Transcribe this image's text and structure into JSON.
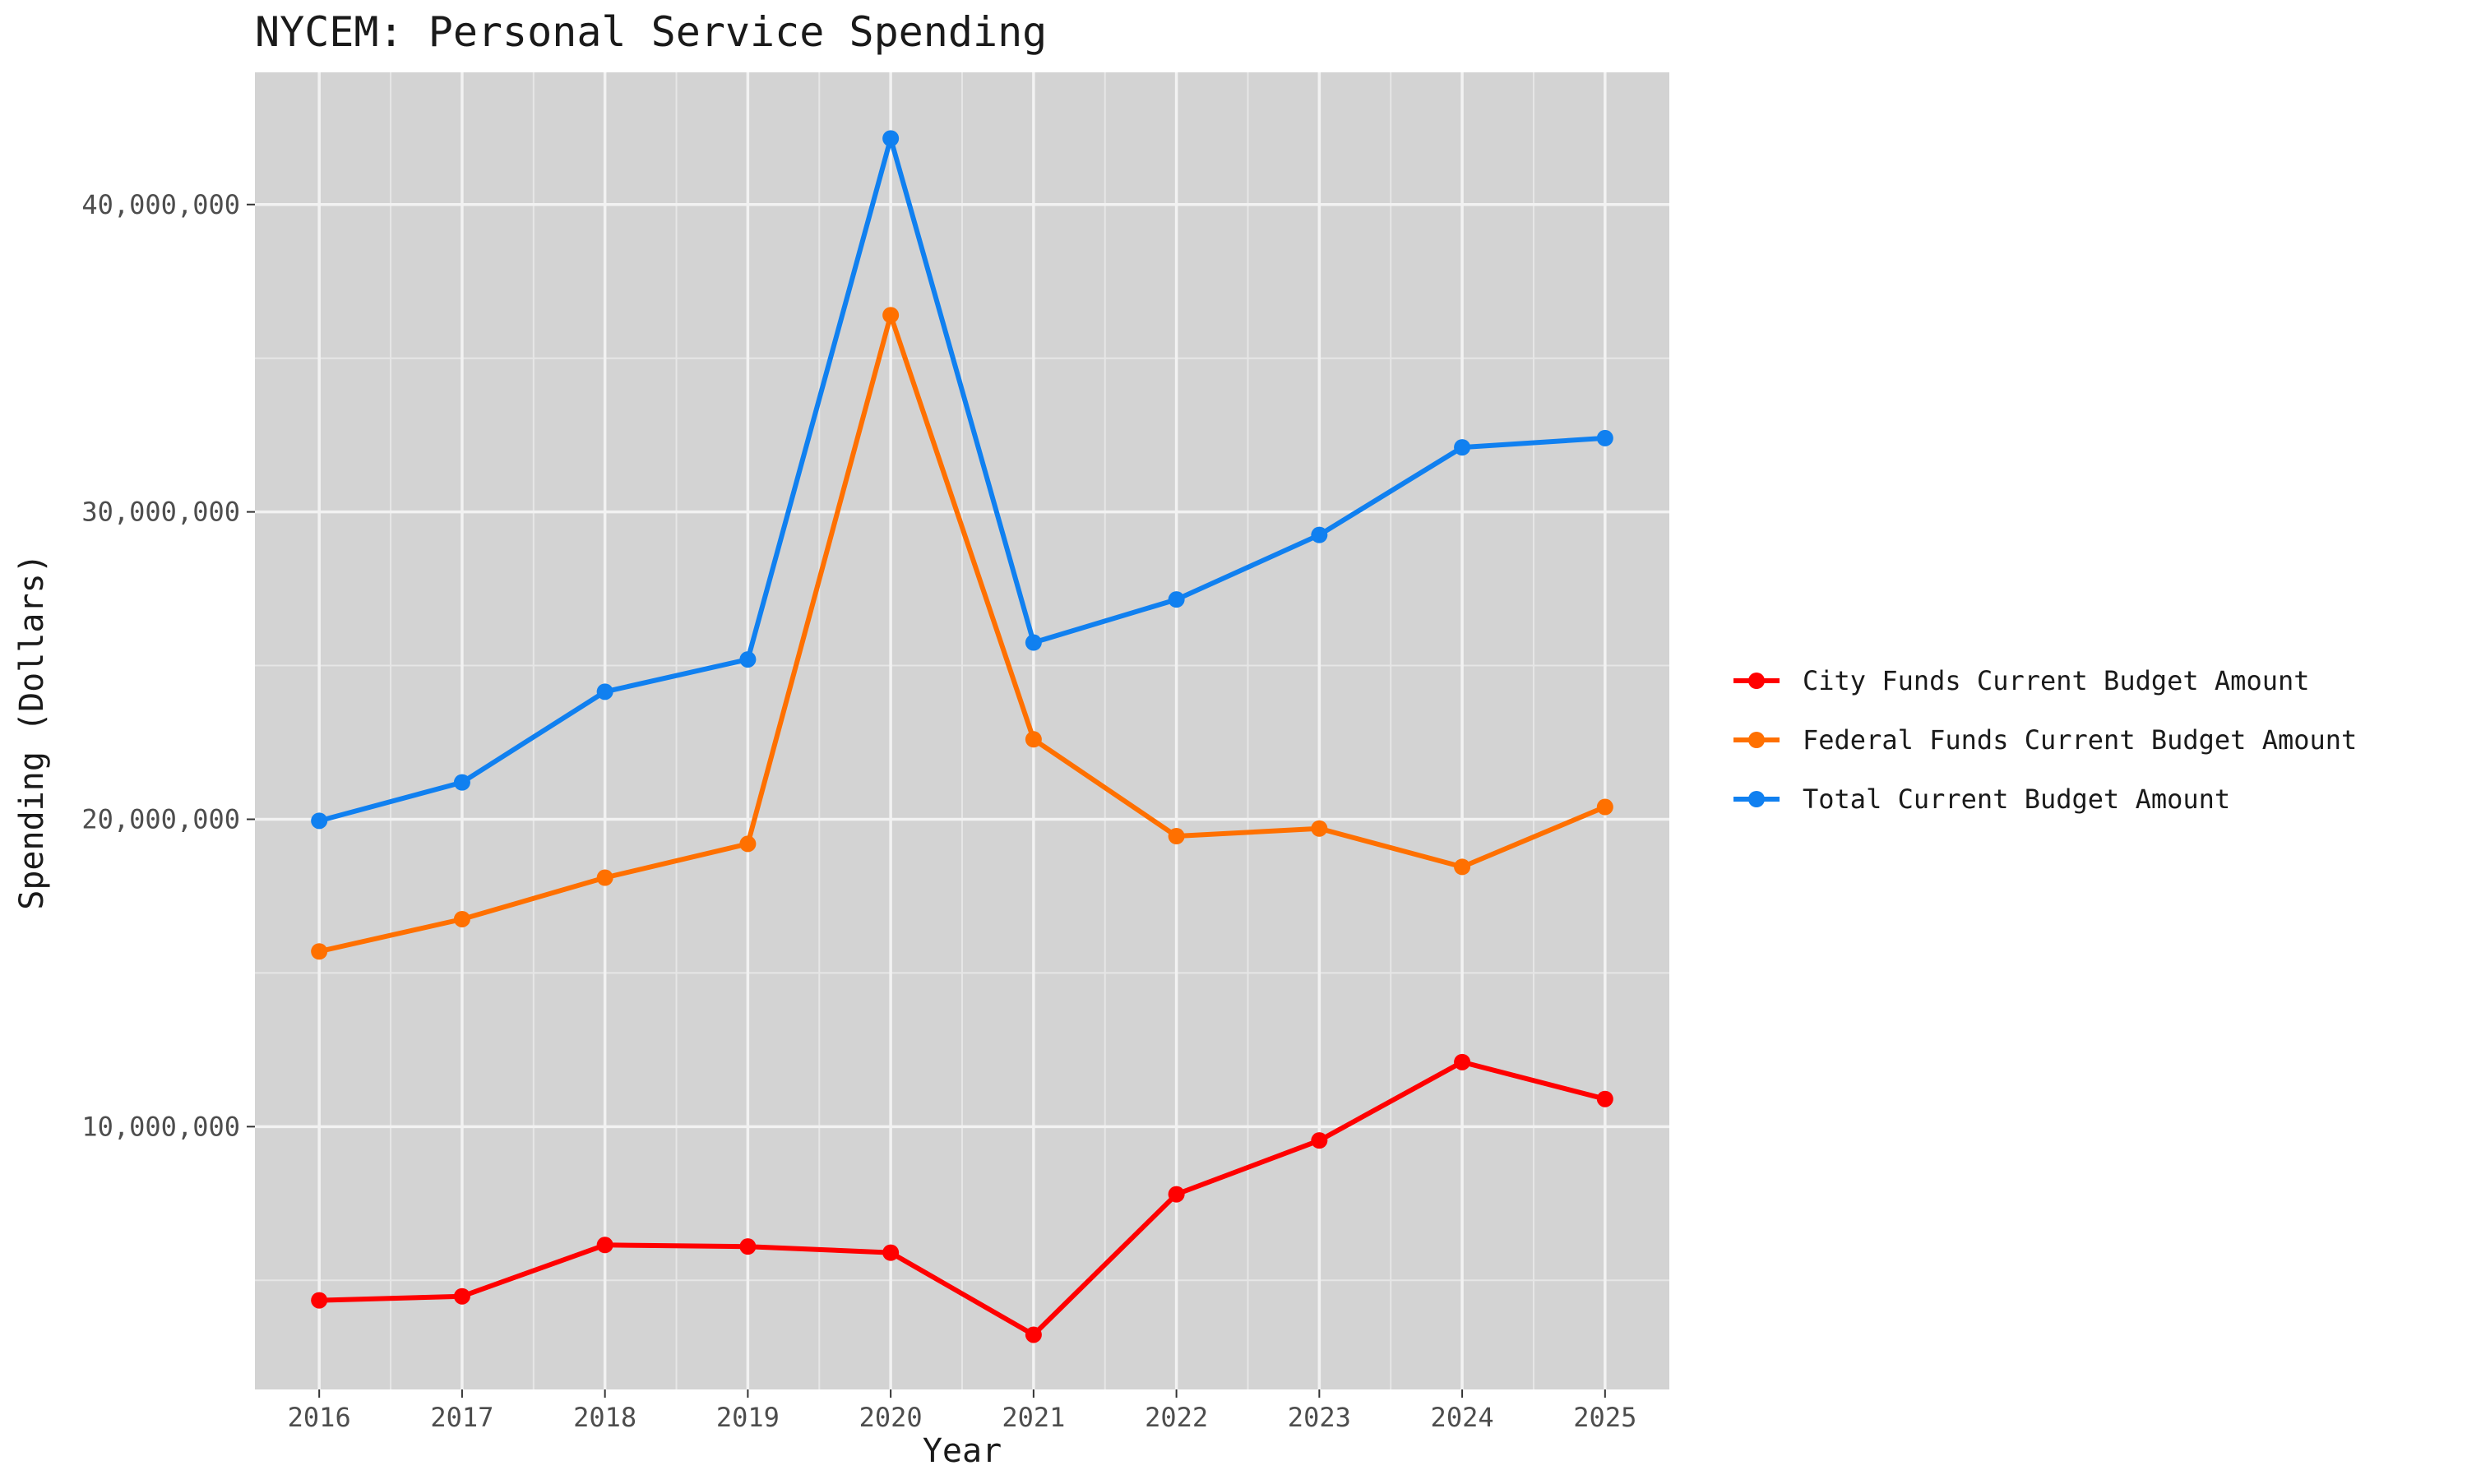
{
  "chart_data": {
    "type": "line",
    "title": "NYCEM: Personal Service Spending",
    "xlabel": "Year",
    "ylabel": "Spending (Dollars)",
    "x": [
      2016,
      2017,
      2018,
      2019,
      2020,
      2021,
      2022,
      2023,
      2024,
      2025
    ],
    "x_tick_labels": [
      "2016",
      "2017",
      "2018",
      "2019",
      "2020",
      "2021",
      "2022",
      "2023",
      "2024",
      "2025"
    ],
    "y_ticks": [
      10000000,
      20000000,
      30000000,
      40000000
    ],
    "y_tick_labels": [
      "10,000,000",
      "20,000,000",
      "30,000,000",
      "40,000,000"
    ],
    "xlim": [
      2015.55,
      2025.45
    ],
    "ylim": [
      1450000,
      44300000
    ],
    "grid": true,
    "legend_position": "right",
    "series": [
      {
        "name": "City Funds Current Budget Amount",
        "color": "#ff0000",
        "values": [
          4350000,
          4480000,
          6150000,
          6100000,
          5900000,
          3230000,
          7800000,
          9550000,
          12100000,
          10900000
        ]
      },
      {
        "name": "Federal Funds Current Budget Amount",
        "color": "#ff7000",
        "values": [
          15700000,
          16750000,
          18100000,
          19200000,
          36400000,
          22600000,
          19450000,
          19700000,
          18450000,
          20400000
        ]
      },
      {
        "name": "Total Current Budget Amount",
        "color": "#1080f0",
        "values": [
          19950000,
          21200000,
          24150000,
          25200000,
          42150000,
          25750000,
          27150000,
          29250000,
          32100000,
          32400000
        ]
      }
    ]
  }
}
